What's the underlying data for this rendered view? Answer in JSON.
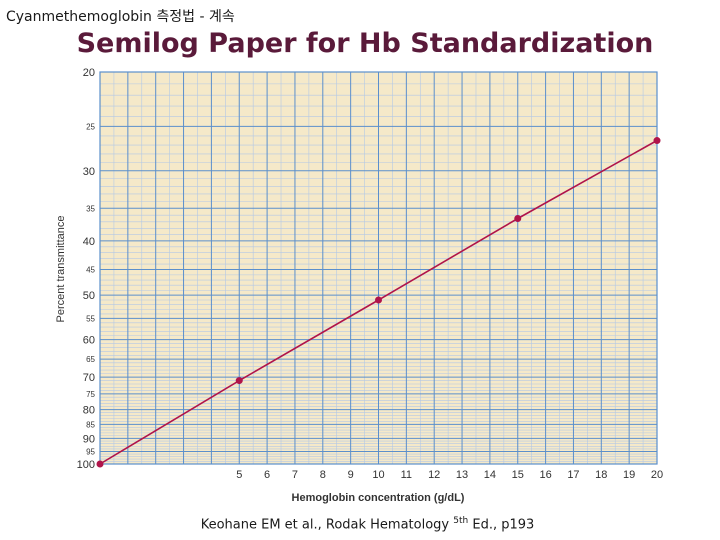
{
  "header": {
    "title": "Cyanmethemoglobin 측정법 - 계속"
  },
  "slide": {
    "title": "Semilog Paper for Hb Standardization"
  },
  "reference": {
    "text": "Keohane EM et al., Rodak Hematology ",
    "sup": "5th",
    "tail": " Ed., p193"
  },
  "colors": {
    "paper": "#f5e9c9",
    "grid_major": "#5b8fcc",
    "grid_minor": "#b3c8e6",
    "line": "#b0144a",
    "title": "#5a1a3a"
  },
  "chart_data": {
    "type": "line",
    "scale": {
      "x": "linear",
      "y": "log"
    },
    "grid": true,
    "xlabel": "Hemoglobin concentration (g/dL)",
    "ylabel": "Percent transmittance",
    "xlim": [
      0,
      20
    ],
    "ylim": [
      20,
      100
    ],
    "y_reversed": true,
    "x_ticks": [
      5,
      6,
      7,
      8,
      9,
      10,
      11,
      12,
      13,
      14,
      15,
      16,
      17,
      18,
      19,
      20
    ],
    "y_ticks": [
      20,
      25,
      30,
      35,
      40,
      45,
      50,
      55,
      60,
      65,
      70,
      75,
      80,
      85,
      90,
      95,
      100
    ],
    "x": [
      0,
      5,
      10,
      15,
      20
    ],
    "y": [
      100,
      71,
      51,
      36.5,
      26.5
    ]
  }
}
